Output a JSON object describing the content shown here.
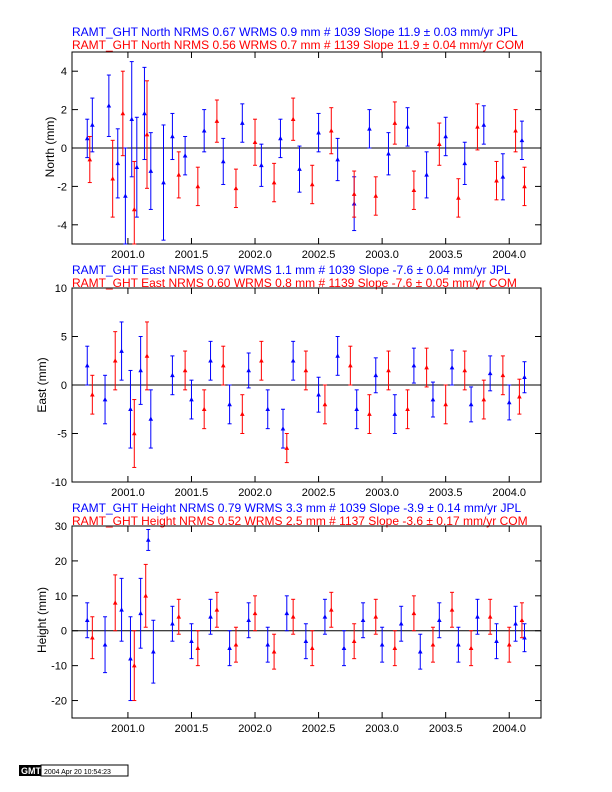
{
  "colors": {
    "series_a": "#0000ff",
    "series_b": "#ff0000",
    "axis": "#000000"
  },
  "stamp": {
    "logo": "GMT",
    "date": "2004 Apr 20 10:54:23"
  },
  "chart_data": [
    {
      "type": "scatter",
      "ylabel": "North (mm)",
      "ylim": [
        -5,
        5
      ],
      "yticks": [
        -4,
        -2,
        0,
        2,
        4
      ],
      "xlim": [
        2000.56,
        2004.25
      ],
      "xticks": [
        2001.0,
        2001.5,
        2002.0,
        2002.5,
        2003.0,
        2003.5,
        2004.0
      ],
      "xtick_labels": [
        "2001.0",
        "2001.5",
        "2002.0",
        "2002.5",
        "2003.0",
        "2003.5",
        "2004.0"
      ],
      "header": [
        "RAMT_GHT North NRMS 0.67 WRMS  0.9 mm # 1039 Slope   11.9 ±  0.03 mm/yr JPL",
        "RAMT_GHT North NRMS 0.56 WRMS  0.7 mm # 1139 Slope   11.9 ±  0.04 mm/yr COM"
      ],
      "series": [
        {
          "name": "JPL",
          "color": "#0000ff",
          "points": [
            {
              "x": 2000.68,
              "y": 0.5,
              "e": 1.0
            },
            {
              "x": 2000.72,
              "y": 1.2,
              "e": 1.4
            },
            {
              "x": 2000.85,
              "y": 2.2,
              "e": 1.6
            },
            {
              "x": 2000.92,
              "y": -0.8,
              "e": 1.8
            },
            {
              "x": 2000.98,
              "y": -2.5,
              "e": 2.5
            },
            {
              "x": 2001.03,
              "y": 1.5,
              "e": 3.0
            },
            {
              "x": 2001.07,
              "y": -1.0,
              "e": 2.6
            },
            {
              "x": 2001.13,
              "y": 1.8,
              "e": 2.4
            },
            {
              "x": 2001.18,
              "y": -1.2,
              "e": 2.0
            },
            {
              "x": 2001.28,
              "y": -1.8,
              "e": 3.0
            },
            {
              "x": 2001.35,
              "y": 0.6,
              "e": 1.2
            },
            {
              "x": 2001.45,
              "y": -0.4,
              "e": 1.0
            },
            {
              "x": 2001.6,
              "y": 0.9,
              "e": 1.1
            },
            {
              "x": 2001.75,
              "y": -0.7,
              "e": 1.2
            },
            {
              "x": 2001.9,
              "y": 1.3,
              "e": 1.0
            },
            {
              "x": 2002.05,
              "y": -0.9,
              "e": 1.1
            },
            {
              "x": 2002.2,
              "y": 0.5,
              "e": 1.0
            },
            {
              "x": 2002.35,
              "y": -1.1,
              "e": 1.2
            },
            {
              "x": 2002.5,
              "y": 0.8,
              "e": 1.0
            },
            {
              "x": 2002.65,
              "y": -0.6,
              "e": 1.1
            },
            {
              "x": 2002.78,
              "y": -2.9,
              "e": 1.4
            },
            {
              "x": 2002.9,
              "y": 1.0,
              "e": 1.0
            },
            {
              "x": 2003.05,
              "y": -0.3,
              "e": 1.1
            },
            {
              "x": 2003.2,
              "y": 1.1,
              "e": 1.0
            },
            {
              "x": 2003.35,
              "y": -1.4,
              "e": 1.2
            },
            {
              "x": 2003.5,
              "y": 0.6,
              "e": 1.0
            },
            {
              "x": 2003.65,
              "y": -0.8,
              "e": 1.1
            },
            {
              "x": 2003.8,
              "y": 1.2,
              "e": 1.0
            },
            {
              "x": 2003.95,
              "y": -1.5,
              "e": 1.2
            },
            {
              "x": 2004.1,
              "y": 0.4,
              "e": 1.0
            }
          ]
        },
        {
          "name": "COM",
          "color": "#ff0000",
          "points": [
            {
              "x": 2000.7,
              "y": -0.6,
              "e": 1.2
            },
            {
              "x": 2000.88,
              "y": -1.6,
              "e": 2.0
            },
            {
              "x": 2000.96,
              "y": 1.8,
              "e": 2.2
            },
            {
              "x": 2001.05,
              "y": -3.2,
              "e": 2.5
            },
            {
              "x": 2001.15,
              "y": 0.7,
              "e": 2.8
            },
            {
              "x": 2001.4,
              "y": -1.4,
              "e": 1.2
            },
            {
              "x": 2001.55,
              "y": -2.0,
              "e": 1.0
            },
            {
              "x": 2001.7,
              "y": 1.4,
              "e": 1.1
            },
            {
              "x": 2001.85,
              "y": -2.1,
              "e": 1.0
            },
            {
              "x": 2002.0,
              "y": 0.3,
              "e": 1.2
            },
            {
              "x": 2002.15,
              "y": -1.8,
              "e": 1.0
            },
            {
              "x": 2002.3,
              "y": 1.5,
              "e": 1.1
            },
            {
              "x": 2002.45,
              "y": -1.9,
              "e": 1.0
            },
            {
              "x": 2002.6,
              "y": 0.9,
              "e": 1.2
            },
            {
              "x": 2002.78,
              "y": -2.4,
              "e": 1.2
            },
            {
              "x": 2002.95,
              "y": -2.5,
              "e": 1.0
            },
            {
              "x": 2003.1,
              "y": 1.3,
              "e": 1.1
            },
            {
              "x": 2003.25,
              "y": -2.2,
              "e": 1.0
            },
            {
              "x": 2003.45,
              "y": 0.2,
              "e": 1.1
            },
            {
              "x": 2003.6,
              "y": -2.6,
              "e": 1.0
            },
            {
              "x": 2003.75,
              "y": 1.1,
              "e": 1.2
            },
            {
              "x": 2003.9,
              "y": -1.7,
              "e": 1.0
            },
            {
              "x": 2004.05,
              "y": 0.9,
              "e": 1.1
            },
            {
              "x": 2004.12,
              "y": -2.0,
              "e": 1.0
            }
          ]
        }
      ]
    },
    {
      "type": "scatter",
      "ylabel": "East (mm)",
      "ylim": [
        -10,
        10
      ],
      "yticks": [
        -10,
        -5,
        0,
        5,
        10
      ],
      "xlim": [
        2000.56,
        2004.25
      ],
      "xticks": [
        2001.0,
        2001.5,
        2002.0,
        2002.5,
        2003.0,
        2003.5,
        2004.0
      ],
      "xtick_labels": [
        "2001.0",
        "2001.5",
        "2002.0",
        "2002.5",
        "2003.0",
        "2003.5",
        "2004.0"
      ],
      "header": [
        "RAMT_GHT East NRMS 0.97 WRMS  1.1 mm # 1039 Slope   -7.6 ±  0.04 mm/yr JPL",
        "RAMT_GHT East NRMS 0.60 WRMS  0.8 mm # 1139 Slope   -7.6 ±  0.05 mm/yr COM"
      ],
      "series": [
        {
          "name": "JPL",
          "color": "#0000ff",
          "points": [
            {
              "x": 2000.68,
              "y": 2.0,
              "e": 2.0
            },
            {
              "x": 2000.82,
              "y": -1.5,
              "e": 2.5
            },
            {
              "x": 2000.95,
              "y": 3.5,
              "e": 3.0
            },
            {
              "x": 2001.02,
              "y": -2.5,
              "e": 4.0
            },
            {
              "x": 2001.1,
              "y": 1.5,
              "e": 3.5
            },
            {
              "x": 2001.18,
              "y": -3.5,
              "e": 3.0
            },
            {
              "x": 2001.35,
              "y": 1.0,
              "e": 2.0
            },
            {
              "x": 2001.5,
              "y": -1.5,
              "e": 2.0
            },
            {
              "x": 2001.65,
              "y": 2.5,
              "e": 2.0
            },
            {
              "x": 2001.8,
              "y": -2.0,
              "e": 2.0
            },
            {
              "x": 2001.95,
              "y": 1.5,
              "e": 1.8
            },
            {
              "x": 2002.1,
              "y": -2.5,
              "e": 2.0
            },
            {
              "x": 2002.22,
              "y": -4.5,
              "e": 2.0
            },
            {
              "x": 2002.3,
              "y": 2.5,
              "e": 2.0
            },
            {
              "x": 2002.5,
              "y": -1.0,
              "e": 1.8
            },
            {
              "x": 2002.65,
              "y": 3.0,
              "e": 2.0
            },
            {
              "x": 2002.8,
              "y": -2.5,
              "e": 2.0
            },
            {
              "x": 2002.95,
              "y": 1.0,
              "e": 1.8
            },
            {
              "x": 2003.1,
              "y": -3.0,
              "e": 2.0
            },
            {
              "x": 2003.25,
              "y": 2.0,
              "e": 1.8
            },
            {
              "x": 2003.4,
              "y": -1.5,
              "e": 1.8
            },
            {
              "x": 2003.55,
              "y": 1.8,
              "e": 1.8
            },
            {
              "x": 2003.7,
              "y": -2.0,
              "e": 1.8
            },
            {
              "x": 2003.85,
              "y": 1.2,
              "e": 1.8
            },
            {
              "x": 2004.0,
              "y": -1.8,
              "e": 1.8
            },
            {
              "x": 2004.12,
              "y": 0.8,
              "e": 1.6
            }
          ]
        },
        {
          "name": "COM",
          "color": "#ff0000",
          "points": [
            {
              "x": 2000.72,
              "y": -1.0,
              "e": 2.0
            },
            {
              "x": 2000.9,
              "y": 2.5,
              "e": 3.0
            },
            {
              "x": 2001.05,
              "y": -5.0,
              "e": 3.5
            },
            {
              "x": 2001.15,
              "y": 3.0,
              "e": 3.5
            },
            {
              "x": 2001.45,
              "y": 1.5,
              "e": 2.0
            },
            {
              "x": 2001.6,
              "y": -2.5,
              "e": 2.0
            },
            {
              "x": 2001.75,
              "y": 2.0,
              "e": 2.0
            },
            {
              "x": 2001.9,
              "y": -3.0,
              "e": 2.0
            },
            {
              "x": 2002.05,
              "y": 2.5,
              "e": 2.0
            },
            {
              "x": 2002.25,
              "y": -6.5,
              "e": 1.5
            },
            {
              "x": 2002.4,
              "y": 1.5,
              "e": 2.0
            },
            {
              "x": 2002.55,
              "y": -2.0,
              "e": 2.0
            },
            {
              "x": 2002.75,
              "y": 2.0,
              "e": 2.0
            },
            {
              "x": 2002.9,
              "y": -3.0,
              "e": 2.0
            },
            {
              "x": 2003.05,
              "y": 1.5,
              "e": 2.0
            },
            {
              "x": 2003.2,
              "y": -2.5,
              "e": 2.0
            },
            {
              "x": 2003.35,
              "y": 1.8,
              "e": 2.0
            },
            {
              "x": 2003.5,
              "y": -2.0,
              "e": 2.0
            },
            {
              "x": 2003.65,
              "y": 1.5,
              "e": 2.0
            },
            {
              "x": 2003.8,
              "y": -1.5,
              "e": 2.0
            },
            {
              "x": 2003.95,
              "y": 1.0,
              "e": 2.0
            },
            {
              "x": 2004.08,
              "y": -1.2,
              "e": 1.8
            }
          ]
        }
      ]
    },
    {
      "type": "scatter",
      "ylabel": "Height (mm)",
      "ylim": [
        -25,
        30
      ],
      "yticks": [
        -20,
        -10,
        0,
        10,
        20,
        30
      ],
      "xlim": [
        2000.56,
        2004.25
      ],
      "xticks": [
        2001.0,
        2001.5,
        2002.0,
        2002.5,
        2003.0,
        2003.5,
        2004.0
      ],
      "xtick_labels": [
        "2001.0",
        "2001.5",
        "2002.0",
        "2002.5",
        "2003.0",
        "2003.5",
        "2004.0"
      ],
      "header": [
        "RAMT_GHT Height NRMS 0.79 WRMS  3.3 mm # 1039 Slope   -3.9 ±  0.14 mm/yr JPL",
        "RAMT_GHT Height NRMS 0.52 WRMS  2.5 mm # 1137 Slope   -3.6 ±  0.17 mm/yr COM"
      ],
      "series": [
        {
          "name": "JPL",
          "color": "#0000ff",
          "points": [
            {
              "x": 2000.68,
              "y": 3.0,
              "e": 5.0
            },
            {
              "x": 2000.82,
              "y": -4.0,
              "e": 8.0
            },
            {
              "x": 2000.95,
              "y": 6.0,
              "e": 9.0
            },
            {
              "x": 2001.02,
              "y": -8.0,
              "e": 12.0
            },
            {
              "x": 2001.1,
              "y": 5.0,
              "e": 10.0
            },
            {
              "x": 2001.16,
              "y": 26.0,
              "e": 3.0
            },
            {
              "x": 2001.2,
              "y": -6.0,
              "e": 9.0
            },
            {
              "x": 2001.35,
              "y": 2.0,
              "e": 5.0
            },
            {
              "x": 2001.5,
              "y": -3.0,
              "e": 5.0
            },
            {
              "x": 2001.65,
              "y": 4.0,
              "e": 5.0
            },
            {
              "x": 2001.8,
              "y": -5.0,
              "e": 5.0
            },
            {
              "x": 2001.95,
              "y": 3.0,
              "e": 5.0
            },
            {
              "x": 2002.1,
              "y": -4.0,
              "e": 5.0
            },
            {
              "x": 2002.25,
              "y": 5.0,
              "e": 5.0
            },
            {
              "x": 2002.4,
              "y": -3.0,
              "e": 5.0
            },
            {
              "x": 2002.55,
              "y": 4.0,
              "e": 5.0
            },
            {
              "x": 2002.7,
              "y": -5.0,
              "e": 5.0
            },
            {
              "x": 2002.85,
              "y": 3.0,
              "e": 5.0
            },
            {
              "x": 2003.0,
              "y": -4.0,
              "e": 5.0
            },
            {
              "x": 2003.15,
              "y": 2.0,
              "e": 5.0
            },
            {
              "x": 2003.3,
              "y": -6.0,
              "e": 5.0
            },
            {
              "x": 2003.45,
              "y": 3.0,
              "e": 5.0
            },
            {
              "x": 2003.6,
              "y": -4.0,
              "e": 5.0
            },
            {
              "x": 2003.75,
              "y": 4.0,
              "e": 5.0
            },
            {
              "x": 2003.9,
              "y": -3.0,
              "e": 5.0
            },
            {
              "x": 2004.05,
              "y": 2.0,
              "e": 5.0
            },
            {
              "x": 2004.12,
              "y": -2.0,
              "e": 4.0
            }
          ]
        },
        {
          "name": "COM",
          "color": "#ff0000",
          "points": [
            {
              "x": 2000.72,
              "y": -2.0,
              "e": 6.0
            },
            {
              "x": 2000.9,
              "y": 8.0,
              "e": 8.0
            },
            {
              "x": 2001.05,
              "y": -10.0,
              "e": 10.0
            },
            {
              "x": 2001.14,
              "y": 10.0,
              "e": 9.0
            },
            {
              "x": 2001.4,
              "y": 4.0,
              "e": 5.0
            },
            {
              "x": 2001.55,
              "y": -5.0,
              "e": 5.0
            },
            {
              "x": 2001.7,
              "y": 6.0,
              "e": 5.0
            },
            {
              "x": 2001.85,
              "y": -4.0,
              "e": 5.0
            },
            {
              "x": 2002.0,
              "y": 5.0,
              "e": 5.0
            },
            {
              "x": 2002.15,
              "y": -6.0,
              "e": 5.0
            },
            {
              "x": 2002.3,
              "y": 4.0,
              "e": 5.0
            },
            {
              "x": 2002.45,
              "y": -5.0,
              "e": 5.0
            },
            {
              "x": 2002.6,
              "y": 6.0,
              "e": 5.0
            },
            {
              "x": 2002.78,
              "y": -3.0,
              "e": 5.0
            },
            {
              "x": 2002.95,
              "y": 4.0,
              "e": 5.0
            },
            {
              "x": 2003.1,
              "y": -5.0,
              "e": 5.0
            },
            {
              "x": 2003.25,
              "y": 5.0,
              "e": 5.0
            },
            {
              "x": 2003.4,
              "y": -4.0,
              "e": 5.0
            },
            {
              "x": 2003.55,
              "y": 6.0,
              "e": 5.0
            },
            {
              "x": 2003.7,
              "y": -5.0,
              "e": 5.0
            },
            {
              "x": 2003.85,
              "y": 4.0,
              "e": 5.0
            },
            {
              "x": 2004.0,
              "y": -4.0,
              "e": 5.0
            },
            {
              "x": 2004.1,
              "y": 3.0,
              "e": 5.0
            }
          ]
        }
      ]
    }
  ]
}
